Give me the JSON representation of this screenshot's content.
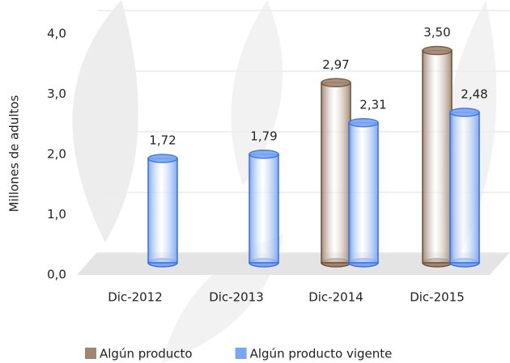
{
  "chart_data": {
    "type": "cylinder_bar",
    "y_axis_label": "Millones de adultos",
    "categories": [
      "Dic-2012",
      "Dic-2013",
      "Dic-2014",
      "Dic-2015"
    ],
    "series": [
      {
        "name": "Algún producto",
        "color": "#a08670",
        "values": [
          null,
          null,
          2.97,
          3.5
        ],
        "value_labels": [
          null,
          null,
          "2,97",
          "3,50"
        ]
      },
      {
        "name": "Algún producto vigente",
        "color": "#7aa6f0",
        "values": [
          1.72,
          1.79,
          2.31,
          2.48
        ],
        "value_labels": [
          "1,72",
          "1,79",
          "2,31",
          "2,48"
        ]
      }
    ],
    "ylim": [
      0,
      4
    ],
    "yticks": [
      {
        "value": 0,
        "label": "0,0"
      },
      {
        "value": 1,
        "label": "1,0"
      },
      {
        "value": 2,
        "label": "2,0"
      },
      {
        "value": 3,
        "label": "3,0"
      },
      {
        "value": 4,
        "label": "4,0"
      }
    ],
    "grid": true
  }
}
